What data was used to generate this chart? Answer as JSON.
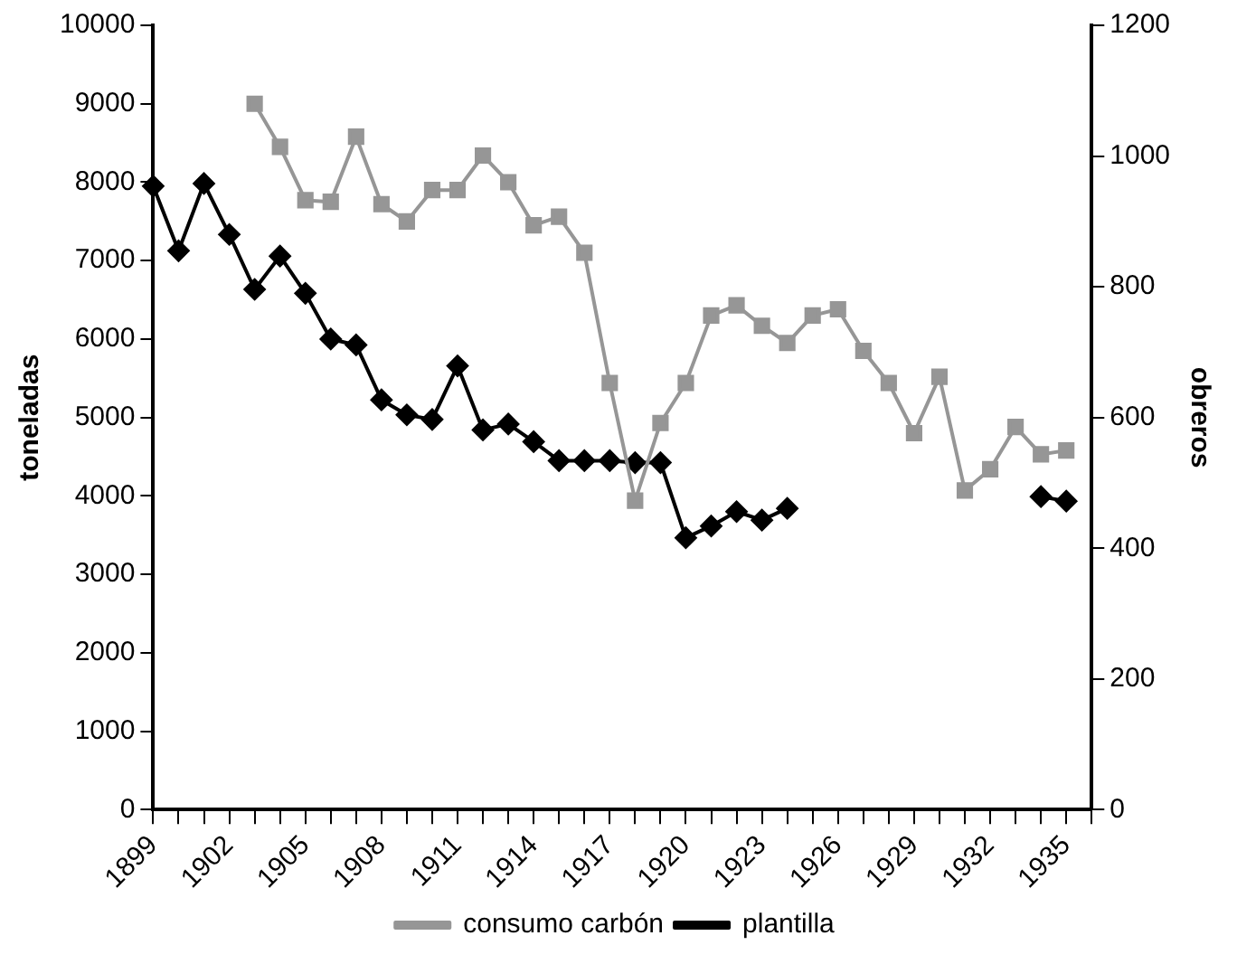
{
  "chart_data": {
    "type": "line",
    "xlabel": null,
    "ylabel": "toneladas",
    "y2label": "obreros",
    "categories": [
      "1899",
      null,
      null,
      "1902",
      null,
      null,
      "1905",
      null,
      null,
      "1908",
      null,
      null,
      "1911",
      null,
      null,
      "1914",
      null,
      null,
      "1917",
      null,
      null,
      "1920",
      null,
      null,
      "1923",
      null,
      null,
      "1926",
      null,
      null,
      "1929",
      null,
      null,
      "1932",
      null,
      null,
      "1935",
      null
    ],
    "series": [
      {
        "name": "consumo carbón",
        "color": "#969696",
        "marker": "square",
        "values": [
          null,
          null,
          null,
          null,
          9000,
          8450,
          7770,
          7750,
          8580,
          7720,
          7500,
          7900,
          7900,
          8340,
          8000,
          7450,
          7560,
          7100,
          5440,
          3940,
          4930,
          5440,
          6300,
          6430,
          6170,
          5950,
          6300,
          6380,
          5850,
          5440,
          4800,
          5520,
          4070,
          4340,
          4880,
          4530,
          4580,
          null
        ]
      },
      {
        "name": "plantilla",
        "color": "#000000",
        "marker": "diamond",
        "axis": "y2",
        "values": [
          954,
          855,
          958,
          880,
          796,
          847,
          790,
          720,
          711,
          627,
          604,
          597,
          679,
          581,
          590,
          563,
          534,
          534,
          534,
          531,
          531,
          416,
          434,
          456,
          443,
          461,
          null,
          null,
          null,
          null,
          null,
          null,
          null,
          null,
          null,
          479,
          472,
          null
        ]
      }
    ],
    "ylim": [
      0,
      10000
    ],
    "yticks": [
      0,
      1000,
      2000,
      3000,
      4000,
      5000,
      6000,
      7000,
      8000,
      9000,
      10000
    ],
    "y2lim": [
      0,
      1200
    ],
    "y2ticks": [
      0,
      200,
      400,
      600,
      800,
      1000,
      1200
    ],
    "grid": false,
    "legend": "bottom"
  }
}
